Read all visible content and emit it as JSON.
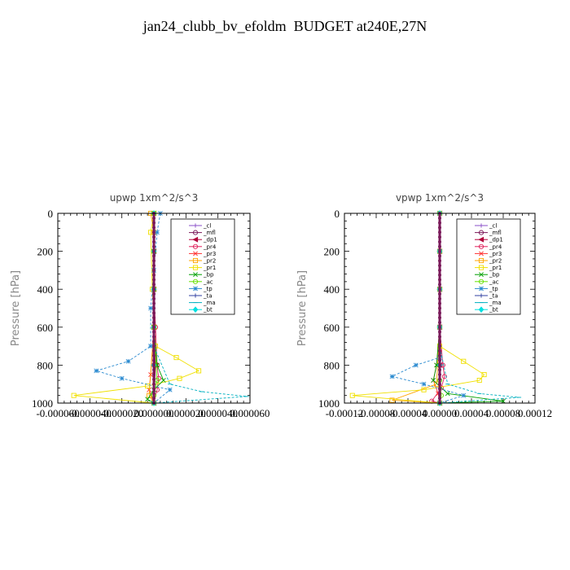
{
  "title": "jan24_clubb_bv_efoldm  BUDGET at240E,27N",
  "chart_data": [
    {
      "type": "line",
      "title": "upwp   1xm^2/s^3",
      "ylabel": "Pressure  [hPa]",
      "xlim": [
        -6e-05,
        6e-05
      ],
      "ylim": [
        1000,
        0
      ],
      "xticks": [
        "-0.000060",
        "-0.000040",
        "-0.000020",
        "0.000000",
        "0.000020",
        "0.000040",
        "0.000060"
      ],
      "yticks": [
        "0",
        "200",
        "400",
        "600",
        "800",
        "1000"
      ],
      "legend": "top-right",
      "series": [
        {
          "name": "_cl",
          "color": "#8a4fc8",
          "marker": "+",
          "x": [
            0,
            0,
            0,
            0,
            0,
            0
          ],
          "y": [
            0,
            200,
            400,
            600,
            800,
            1000
          ]
        },
        {
          "name": "_mfl",
          "color": "#7a1a5a",
          "marker": "o",
          "x": [
            0,
            0,
            0,
            0,
            0,
            0
          ],
          "y": [
            0,
            200,
            400,
            600,
            800,
            1000
          ]
        },
        {
          "name": "_dp1",
          "color": "#b0003a",
          "marker": "<",
          "x": [
            0,
            0,
            0,
            0,
            1e-06,
            0
          ],
          "y": [
            0,
            200,
            400,
            600,
            800,
            1000
          ]
        },
        {
          "name": "_pr4",
          "color": "#e0205a",
          "marker": "o",
          "x": [
            0,
            0,
            0,
            1e-06,
            2e-06,
            3e-06,
            2e-06,
            0
          ],
          "y": [
            0,
            200,
            400,
            600,
            800,
            870,
            930,
            1000
          ]
        },
        {
          "name": "_pr3",
          "color": "#ff3030",
          "marker": "x",
          "x": [
            0,
            0,
            0,
            0,
            -2e-06,
            -3e-06,
            0
          ],
          "y": [
            0,
            200,
            400,
            600,
            850,
            930,
            1000
          ]
        },
        {
          "name": "_pr2",
          "color": "#ffa500",
          "marker": "s",
          "x": [
            -2e-06,
            0,
            0,
            0,
            -3e-06,
            0
          ],
          "y": [
            0,
            100,
            400,
            600,
            960,
            1000
          ]
        },
        {
          "name": "_pr1",
          "color": "#f0e000",
          "marker": "s",
          "x": [
            0,
            -2e-06,
            -1e-06,
            1e-06,
            1.4e-05,
            2.8e-05,
            1.6e-05,
            -4e-06,
            -5e-05,
            0
          ],
          "y": [
            0,
            100,
            400,
            700,
            760,
            830,
            870,
            910,
            960,
            1000
          ]
        },
        {
          "name": "_bp",
          "color": "#00a000",
          "marker": "x",
          "x": [
            0,
            0,
            0,
            0,
            2e-06,
            6e-06,
            0,
            -4e-06,
            0
          ],
          "y": [
            0,
            200,
            400,
            600,
            800,
            880,
            930,
            980,
            1000
          ]
        },
        {
          "name": "_ac",
          "color": "#66e000",
          "marker": "o",
          "x": [
            0,
            0,
            0,
            0,
            2e-06,
            0,
            0
          ],
          "y": [
            0,
            200,
            400,
            600,
            880,
            960,
            1000
          ]
        },
        {
          "name": "_tp",
          "color": "#2a8ad0",
          "marker": "*",
          "x": [
            4e-06,
            2e-06,
            0,
            -2e-06,
            -2e-06,
            -1.6e-05,
            -3.6e-05,
            -2e-05,
            1e-05,
            0
          ],
          "y": [
            0,
            100,
            300,
            500,
            700,
            780,
            830,
            870,
            930,
            1000
          ]
        },
        {
          "name": "_ta",
          "color": "#3040a0",
          "marker": "+",
          "x": [
            0,
            0,
            0,
            0,
            0,
            0
          ],
          "y": [
            0,
            200,
            400,
            600,
            800,
            1000
          ]
        },
        {
          "name": "_ma",
          "color": "#00b0c0",
          "marker": "-",
          "x": [
            0,
            0,
            0,
            0,
            1e-05,
            3e-05,
            5.8e-05,
            0
          ],
          "y": [
            0,
            200,
            400,
            700,
            900,
            940,
            965,
            1000
          ]
        },
        {
          "name": "_bt",
          "color": "#00e0e0",
          "marker": "d",
          "x": [
            0,
            0,
            0,
            0,
            0,
            0
          ],
          "y": [
            0,
            200,
            400,
            600,
            800,
            1000
          ]
        }
      ]
    },
    {
      "type": "line",
      "title": "vpwp   1xm^2/s^3",
      "ylabel": "Pressure  [hPa]",
      "xlim": [
        -0.00012,
        0.00012
      ],
      "ylim": [
        1000,
        0
      ],
      "xticks": [
        "-0.00012",
        "-0.00008",
        "-0.00004",
        "0.00000",
        "0.00004",
        "0.00008",
        "0.00012"
      ],
      "yticks": [
        "0",
        "200",
        "400",
        "600",
        "800",
        "1000"
      ],
      "legend": "top-right",
      "series": [
        {
          "name": "_cl",
          "color": "#8a4fc8",
          "marker": "+",
          "x": [
            0,
            0,
            0,
            0,
            0,
            0
          ],
          "y": [
            0,
            200,
            400,
            600,
            800,
            1000
          ]
        },
        {
          "name": "_mfl",
          "color": "#7a1a5a",
          "marker": "o",
          "x": [
            0,
            0,
            0,
            0,
            0,
            0
          ],
          "y": [
            0,
            200,
            400,
            600,
            800,
            1000
          ]
        },
        {
          "name": "_dp1",
          "color": "#b0003a",
          "marker": "<",
          "x": [
            0,
            0,
            0,
            0,
            0,
            0
          ],
          "y": [
            0,
            200,
            400,
            600,
            800,
            1000
          ]
        },
        {
          "name": "_pr4",
          "color": "#e0205a",
          "marker": "o",
          "x": [
            0,
            0,
            0,
            0,
            4e-06,
            6e-06,
            2e-06,
            -1e-05,
            0
          ],
          "y": [
            0,
            200,
            400,
            600,
            800,
            860,
            920,
            990,
            1000
          ]
        },
        {
          "name": "_pr3",
          "color": "#ff3030",
          "marker": "x",
          "x": [
            0,
            0,
            0,
            0,
            -4e-06,
            -8e-06,
            -2e-06,
            0
          ],
          "y": [
            0,
            200,
            400,
            600,
            800,
            880,
            950,
            1000
          ]
        },
        {
          "name": "_pr2",
          "color": "#ffa500",
          "marker": "s",
          "x": [
            0,
            0,
            0,
            0,
            -4e-06,
            -6e-05,
            0
          ],
          "y": [
            0,
            200,
            400,
            600,
            900,
            985,
            1000
          ]
        },
        {
          "name": "_pr1",
          "color": "#f0e000",
          "marker": "s",
          "x": [
            0,
            0,
            0,
            0,
            3e-05,
            5.6e-05,
            5e-05,
            -2e-05,
            -0.00011,
            0
          ],
          "y": [
            0,
            200,
            400,
            700,
            780,
            850,
            880,
            930,
            960,
            1000
          ]
        },
        {
          "name": "_bp",
          "color": "#00a000",
          "marker": "x",
          "x": [
            0,
            0,
            0,
            0,
            -4e-06,
            -8e-06,
            1e-05,
            8e-05,
            0
          ],
          "y": [
            0,
            200,
            400,
            600,
            800,
            880,
            950,
            990,
            1000
          ]
        },
        {
          "name": "_ac",
          "color": "#66e000",
          "marker": "o",
          "x": [
            0,
            0,
            0,
            0,
            0,
            2e-06,
            0
          ],
          "y": [
            0,
            200,
            400,
            600,
            880,
            960,
            1000
          ]
        },
        {
          "name": "_tp",
          "color": "#2a8ad0",
          "marker": "*",
          "x": [
            0,
            0,
            0,
            0,
            0,
            -3e-05,
            -6e-05,
            -2e-05,
            3e-05,
            0
          ],
          "y": [
            0,
            200,
            400,
            600,
            760,
            800,
            860,
            900,
            960,
            1000
          ]
        },
        {
          "name": "_ta",
          "color": "#3040a0",
          "marker": "+",
          "x": [
            0,
            0,
            0,
            0,
            0,
            0
          ],
          "y": [
            0,
            200,
            400,
            600,
            800,
            1000
          ]
        },
        {
          "name": "_ma",
          "color": "#00b0c0",
          "marker": "-",
          "x": [
            0,
            0,
            0,
            0,
            1e-05,
            5e-05,
            0.0001,
            0
          ],
          "y": [
            0,
            200,
            400,
            700,
            900,
            950,
            970,
            1000
          ]
        },
        {
          "name": "_bt",
          "color": "#00e0e0",
          "marker": "d",
          "x": [
            0,
            0,
            0,
            0,
            0,
            0
          ],
          "y": [
            0,
            200,
            400,
            600,
            800,
            1000
          ]
        }
      ]
    }
  ]
}
